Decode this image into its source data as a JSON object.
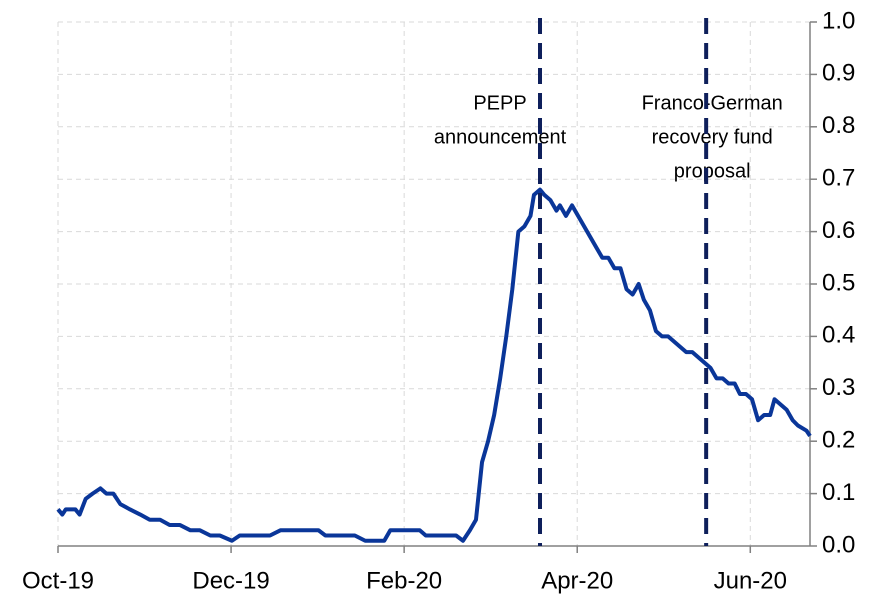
{
  "chart_data": {
    "type": "line",
    "x": [
      0,
      0.05,
      0.09,
      0.2,
      0.25,
      0.32,
      0.4,
      0.49,
      0.56,
      0.64,
      0.72,
      0.83,
      0.95,
      1.06,
      1.18,
      1.29,
      1.41,
      1.53,
      1.64,
      1.76,
      1.87,
      2.01,
      2.1,
      2.22,
      2.34,
      2.45,
      2.57,
      2.68,
      2.8,
      2.91,
      3.01,
      3.09,
      3.2,
      3.32,
      3.43,
      3.55,
      3.66,
      3.77,
      3.84,
      3.91,
      4,
      4.09,
      4.18,
      4.25,
      4.37,
      4.49,
      4.6,
      4.68,
      4.76,
      4.83,
      4.9,
      4.97,
      5.04,
      5.11,
      5.18,
      5.25,
      5.32,
      5.39,
      5.46,
      5.5,
      5.57,
      5.62,
      5.69,
      5.76,
      5.8,
      5.87,
      5.94,
      6.01,
      6.08,
      6.15,
      6.22,
      6.29,
      6.36,
      6.43,
      6.5,
      6.57,
      6.64,
      6.71,
      6.77,
      6.84,
      6.91,
      6.98,
      7.05,
      7.12,
      7.19,
      7.26,
      7.33,
      7.4,
      7.47,
      7.54,
      7.61,
      7.68,
      7.75,
      7.82,
      7.88,
      7.95,
      8.02,
      8.09,
      8.16,
      8.23,
      8.28,
      8.35,
      8.42,
      8.49,
      8.55,
      8.65,
      8.69
    ],
    "series": [
      {
        "color": "#0a3699",
        "values": [
          0.07,
          0.06,
          0.07,
          0.07,
          0.06,
          0.09,
          0.1,
          0.11,
          0.1,
          0.1,
          0.08,
          0.07,
          0.06,
          0.05,
          0.05,
          0.04,
          0.04,
          0.03,
          0.03,
          0.02,
          0.02,
          0.01,
          0.02,
          0.02,
          0.02,
          0.02,
          0.03,
          0.03,
          0.03,
          0.03,
          0.03,
          0.02,
          0.02,
          0.02,
          0.02,
          0.01,
          0.01,
          0.01,
          0.03,
          0.03,
          0.03,
          0.03,
          0.03,
          0.02,
          0.02,
          0.02,
          0.02,
          0.01,
          0.03,
          0.05,
          0.16,
          0.2,
          0.25,
          0.32,
          0.4,
          0.49,
          0.6,
          0.61,
          0.63,
          0.67,
          0.68,
          0.67,
          0.66,
          0.64,
          0.65,
          0.63,
          0.65,
          0.63,
          0.61,
          0.59,
          0.57,
          0.55,
          0.55,
          0.53,
          0.53,
          0.49,
          0.48,
          0.5,
          0.47,
          0.45,
          0.41,
          0.4,
          0.4,
          0.39,
          0.38,
          0.37,
          0.37,
          0.36,
          0.35,
          0.34,
          0.32,
          0.32,
          0.31,
          0.31,
          0.29,
          0.29,
          0.28,
          0.24,
          0.25,
          0.25,
          0.28,
          0.27,
          0.26,
          0.24,
          0.23,
          0.22,
          0.21
        ]
      }
    ],
    "xlim": [
      0,
      8.69
    ],
    "xticks": [
      {
        "value": 0,
        "label": "Oct-19"
      },
      {
        "value": 2,
        "label": "Dec-19"
      },
      {
        "value": 4,
        "label": "Feb-20"
      },
      {
        "value": 6,
        "label": "Apr-20"
      },
      {
        "value": 8,
        "label": "Jun-20"
      }
    ],
    "ylim": [
      0,
      1
    ],
    "yticks": [
      {
        "value": 0,
        "label": "0.0"
      },
      0.1,
      0.2,
      0.3,
      0.4,
      0.5,
      0.6,
      0.7,
      0.8,
      0.9,
      {
        "value": 1,
        "label": "1.0"
      }
    ],
    "grid": true,
    "annotations": [
      {
        "x": 5.57,
        "color": "#0e1f5b",
        "text": [
          "PEPP",
          "announcement"
        ]
      },
      {
        "x": 7.49,
        "color": "#0e1f5b",
        "text": [
          "Franco-German",
          "recovery fund",
          "proposal"
        ]
      }
    ]
  }
}
